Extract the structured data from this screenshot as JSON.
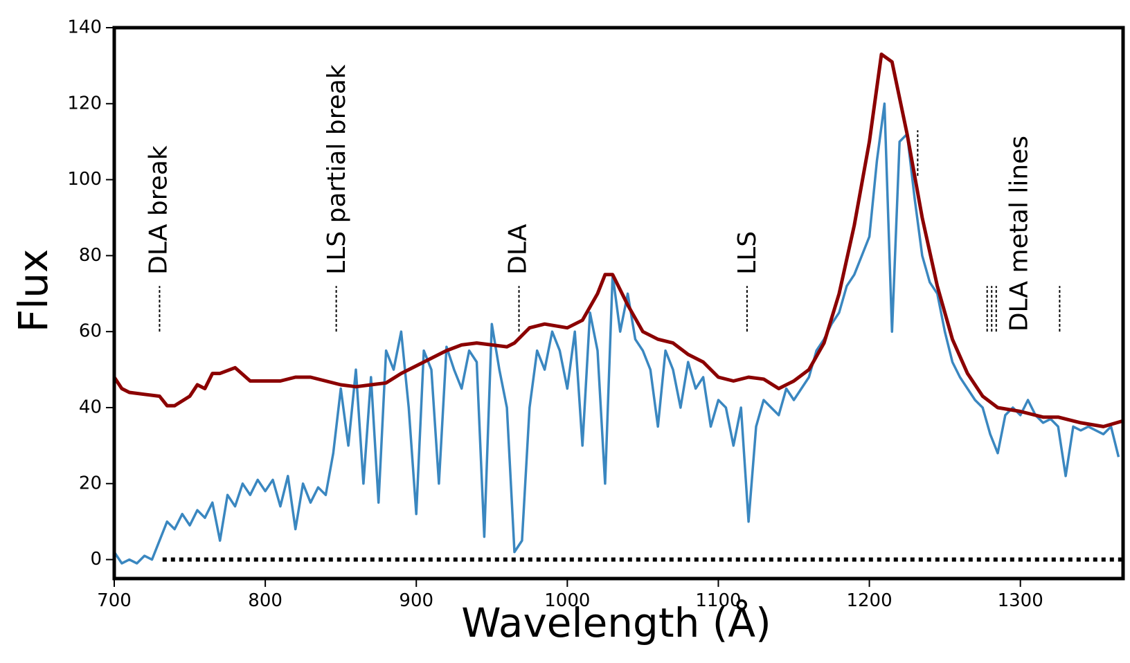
{
  "chart_data": {
    "type": "line",
    "x_label": "Wavelength (Å)",
    "y_label": "Flux",
    "xlim": [
      700,
      1368
    ],
    "ylim": [
      -5,
      140
    ],
    "xticks": [
      700,
      800,
      900,
      1000,
      1100,
      1200,
      1300
    ],
    "yticks": [
      0,
      20,
      40,
      60,
      80,
      100,
      120,
      140
    ],
    "series": [
      {
        "color": "#3a87c0",
        "x": [
          700,
          705,
          710,
          715,
          720,
          725,
          730,
          735,
          740,
          745,
          750,
          755,
          760,
          765,
          770,
          775,
          780,
          785,
          790,
          795,
          800,
          805,
          810,
          815,
          820,
          825,
          830,
          835,
          840,
          845,
          850,
          855,
          860,
          865,
          870,
          875,
          880,
          885,
          890,
          895,
          900,
          905,
          910,
          915,
          920,
          925,
          930,
          935,
          940,
          945,
          950,
          955,
          960,
          965,
          970,
          975,
          980,
          985,
          990,
          995,
          1000,
          1005,
          1010,
          1015,
          1020,
          1025,
          1030,
          1035,
          1040,
          1045,
          1050,
          1055,
          1060,
          1065,
          1070,
          1075,
          1080,
          1085,
          1090,
          1095,
          1100,
          1105,
          1110,
          1115,
          1120,
          1125,
          1130,
          1135,
          1140,
          1145,
          1150,
          1155,
          1160,
          1165,
          1170,
          1175,
          1180,
          1185,
          1190,
          1195,
          1200,
          1205,
          1210,
          1215,
          1220,
          1225,
          1230,
          1235,
          1240,
          1245,
          1250,
          1255,
          1260,
          1265,
          1270,
          1275,
          1280,
          1285,
          1290,
          1295,
          1300,
          1305,
          1310,
          1315,
          1320,
          1325,
          1330,
          1335,
          1340,
          1345,
          1350,
          1355,
          1360,
          1365
        ],
        "values": [
          2,
          -1,
          0,
          -1,
          1,
          0,
          5,
          10,
          8,
          12,
          9,
          13,
          11,
          15,
          5,
          17,
          14,
          20,
          17,
          21,
          18,
          21,
          14,
          22,
          8,
          20,
          15,
          19,
          17,
          28,
          45,
          30,
          50,
          20,
          48,
          15,
          55,
          50,
          60,
          40,
          12,
          55,
          50,
          20,
          56,
          50,
          45,
          55,
          52,
          6,
          62,
          50,
          40,
          2,
          5,
          40,
          55,
          50,
          60,
          55,
          45,
          60,
          30,
          65,
          55,
          20,
          75,
          60,
          70,
          58,
          55,
          50,
          35,
          55,
          50,
          40,
          52,
          45,
          48,
          35,
          42,
          40,
          30,
          40,
          10,
          35,
          42,
          40,
          38,
          45,
          42,
          45,
          48,
          55,
          58,
          62,
          65,
          72,
          75,
          80,
          85,
          105,
          120,
          60,
          110,
          112,
          95,
          80,
          73,
          70,
          60,
          52,
          48,
          45,
          42,
          40,
          33,
          28,
          38,
          40,
          38,
          42,
          38,
          36,
          37,
          35,
          22,
          35,
          34,
          35,
          34,
          33,
          35,
          27
        ]
      },
      {
        "color": "#8b0000",
        "x": [
          700,
          705,
          710,
          720,
          730,
          735,
          740,
          750,
          755,
          760,
          765,
          770,
          780,
          790,
          800,
          810,
          820,
          830,
          840,
          850,
          860,
          870,
          880,
          890,
          900,
          910,
          920,
          930,
          940,
          950,
          960,
          965,
          975,
          985,
          1000,
          1010,
          1020,
          1025,
          1030,
          1040,
          1050,
          1060,
          1070,
          1080,
          1090,
          1100,
          1110,
          1120,
          1130,
          1140,
          1150,
          1160,
          1170,
          1180,
          1190,
          1200,
          1208,
          1215,
          1225,
          1235,
          1245,
          1255,
          1265,
          1275,
          1285,
          1300,
          1315,
          1325,
          1340,
          1355,
          1368
        ],
        "values": [
          48,
          45,
          44,
          43.5,
          43,
          40.5,
          40.5,
          43,
          46,
          45,
          49,
          49,
          50.5,
          47,
          47,
          47,
          48,
          48,
          47,
          46,
          45.5,
          46,
          46.5,
          49,
          51,
          53,
          55,
          56.5,
          57,
          56.5,
          56,
          57,
          61,
          62,
          61,
          63,
          70,
          75,
          75,
          67,
          60,
          58,
          57,
          54,
          52,
          48,
          47,
          48,
          47.5,
          45,
          47,
          50,
          57,
          70,
          88,
          110,
          133,
          131,
          112,
          90,
          72,
          58,
          49,
          43,
          40,
          39,
          37.5,
          37.5,
          36,
          35,
          36.5
        ]
      }
    ],
    "zero_line": {
      "y": 0,
      "x": [
        732,
        1368
      ]
    },
    "line_markers": [
      {
        "x": 730,
        "y": [
          60,
          72
        ]
      },
      {
        "x": 847,
        "y": [
          60,
          72
        ]
      },
      {
        "x": 968,
        "y": [
          60,
          72
        ]
      },
      {
        "x": 1119,
        "y": [
          60,
          72
        ]
      },
      {
        "x": 1232,
        "y": [
          101,
          113
        ]
      },
      {
        "x": 1278,
        "y": [
          60,
          72
        ]
      },
      {
        "x": 1281,
        "y": [
          60,
          72
        ]
      },
      {
        "x": 1284,
        "y": [
          60,
          72
        ]
      },
      {
        "x": 1326,
        "y": [
          60,
          72
        ]
      }
    ],
    "annotations": [
      {
        "text": "DLA break",
        "x": 730,
        "y": 75
      },
      {
        "text": "LLS partial break",
        "x": 848,
        "y": 75
      },
      {
        "text": "DLA",
        "x": 968,
        "y": 75
      },
      {
        "text": "LLS",
        "x": 1120,
        "y": 75
      },
      {
        "text": "DLA metal lines",
        "x": 1300,
        "y": 60
      }
    ]
  }
}
